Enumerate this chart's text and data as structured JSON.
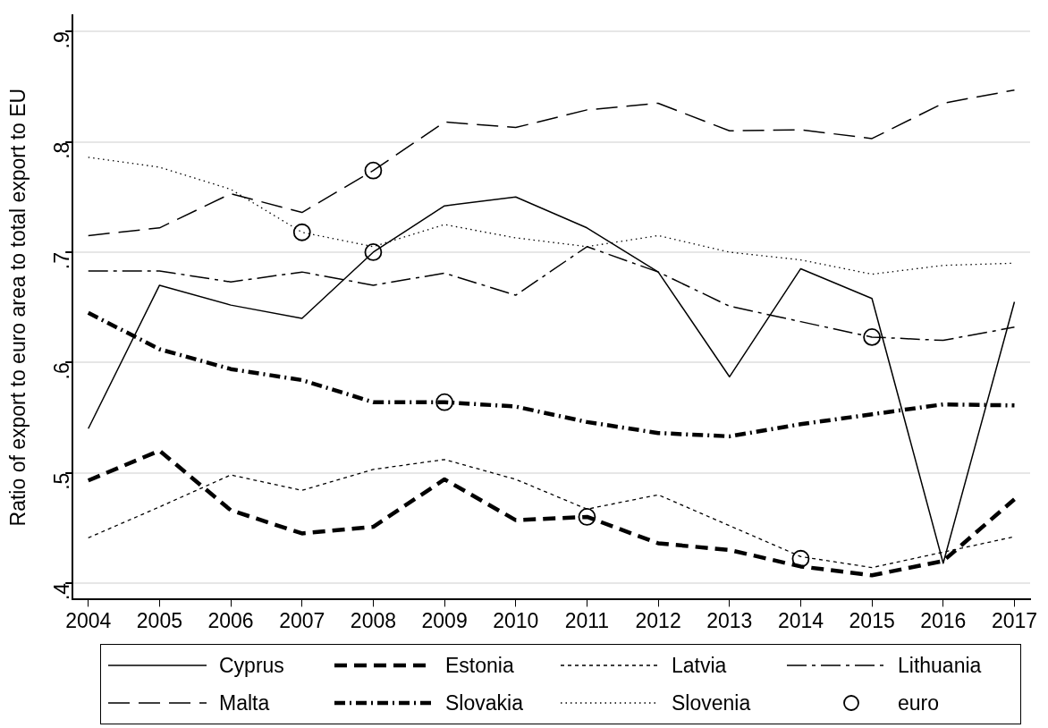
{
  "chart_data": {
    "type": "line",
    "ylabel": "Ratio of export to euro area to total export to EU",
    "x": [
      2004,
      2005,
      2006,
      2007,
      2008,
      2009,
      2010,
      2011,
      2012,
      2013,
      2014,
      2015,
      2016,
      2017
    ],
    "xlim": [
      2003.78,
      2017.22
    ],
    "xticks": [
      2004,
      2005,
      2006,
      2007,
      2008,
      2009,
      2010,
      2011,
      2012,
      2013,
      2014,
      2015,
      2016,
      2017
    ],
    "ylim": [
      0.385,
      0.915
    ],
    "yticks": [
      {
        "value": 0.4,
        "label": ".4"
      },
      {
        "value": 0.5,
        "label": ".5"
      },
      {
        "value": 0.6,
        "label": ".6"
      },
      {
        "value": 0.7,
        "label": ".7"
      },
      {
        "value": 0.8,
        "label": ".8"
      },
      {
        "value": 0.9,
        "label": ".9"
      }
    ],
    "grid": "y",
    "legend": "bottom",
    "marker": "none",
    "series": [
      {
        "name": "Cyprus",
        "color": "#000000",
        "line_style": "solid",
        "values": [
          0.54,
          0.67,
          0.652,
          0.64,
          0.7,
          0.742,
          0.75,
          0.722,
          0.682,
          0.587,
          0.685,
          0.658,
          0.418,
          0.655
        ]
      },
      {
        "name": "Estonia",
        "color": "#000000",
        "line_style": "dashed",
        "values": [
          0.493,
          0.52,
          0.466,
          0.445,
          0.451,
          0.494,
          0.457,
          0.46,
          0.436,
          0.43,
          0.415,
          0.407,
          0.42,
          0.476
        ]
      },
      {
        "name": "Latvia",
        "color": "#000000",
        "line_style": "dashed",
        "values": [
          0.441,
          0.469,
          0.498,
          0.484,
          0.503,
          0.512,
          0.494,
          0.467,
          0.48,
          0.452,
          0.424,
          0.414,
          0.428,
          0.442
        ]
      },
      {
        "name": "Lithuania",
        "color": "#000000",
        "line_style": "dashed",
        "values": [
          0.683,
          0.683,
          0.673,
          0.682,
          0.67,
          0.681,
          0.661,
          0.705,
          0.682,
          0.651,
          0.637,
          0.623,
          0.62,
          0.632
        ]
      },
      {
        "name": "Malta",
        "color": "#000000",
        "line_style": "dashed",
        "values": [
          0.715,
          0.722,
          0.753,
          0.736,
          0.774,
          0.818,
          0.813,
          0.829,
          0.835,
          0.81,
          0.811,
          0.803,
          0.835,
          0.847
        ]
      },
      {
        "name": "Slovakia",
        "color": "#000000",
        "line_style": "dashed",
        "values": [
          0.645,
          0.612,
          0.594,
          0.584,
          0.564,
          0.564,
          0.56,
          0.546,
          0.536,
          0.533,
          0.544,
          0.553,
          0.562,
          0.561
        ]
      },
      {
        "name": "Slovenia",
        "color": "#000000",
        "line_style": "dotted",
        "values": [
          0.786,
          0.777,
          0.757,
          0.718,
          0.705,
          0.725,
          0.713,
          0.705,
          0.715,
          0.7,
          0.693,
          0.68,
          0.688,
          0.69
        ]
      },
      {
        "name": "euro",
        "type": "scatter",
        "color": "#000000",
        "marker": "circle",
        "x": [
          2007,
          2008,
          2008,
          2009,
          2011,
          2014,
          2015
        ],
        "values": [
          0.718,
          0.774,
          0.7,
          0.564,
          0.46,
          0.422,
          0.623
        ]
      }
    ]
  }
}
